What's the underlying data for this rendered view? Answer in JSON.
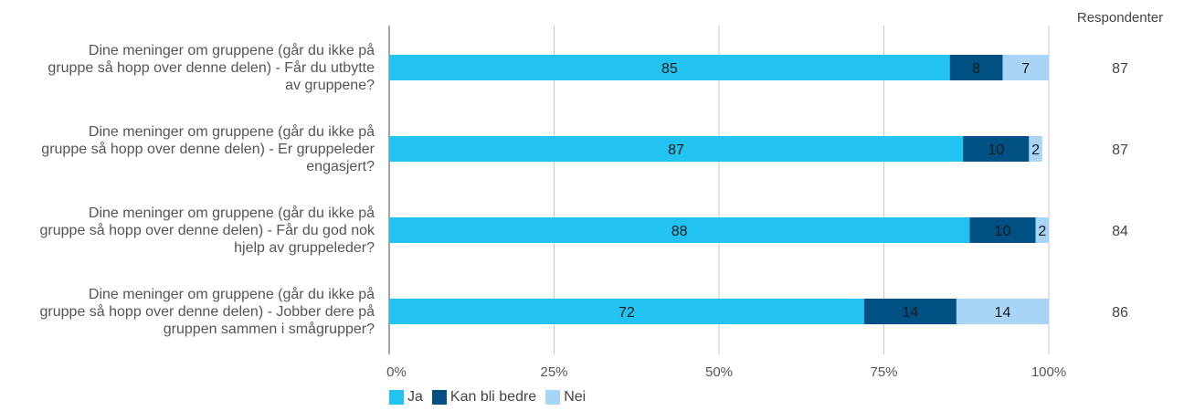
{
  "chart_data": {
    "type": "bar",
    "orientation": "horizontal",
    "stacked": true,
    "percent_stacked": true,
    "categories": [
      [
        "Dine meninger om gruppene (går du ikke på",
        "gruppe så hopp over denne delen) - Får du utbytte",
        "av gruppene?"
      ],
      [
        "Dine meninger om gruppene (går du ikke på",
        "gruppe så hopp over denne delen) - Er gruppeleder",
        "engasjert?"
      ],
      [
        "Dine meninger om gruppene (går du ikke på",
        "gruppe så hopp over denne delen) - Får du god nok",
        "hjelp av gruppeleder?"
      ],
      [
        "Dine meninger om gruppene (går du ikke på",
        "gruppe så hopp over denne delen) - Jobber dere på",
        "gruppen sammen i smågrupper?"
      ]
    ],
    "series": [
      {
        "name": "Ja",
        "color": "#22c3f0",
        "values": [
          85,
          87,
          88,
          72
        ]
      },
      {
        "name": "Kan bli bedre",
        "color": "#005084",
        "values": [
          8,
          10,
          10,
          14
        ]
      },
      {
        "name": "Nei",
        "color": "#a8d4f5",
        "values": [
          7,
          2,
          2,
          14
        ]
      }
    ],
    "xlim": [
      0,
      100
    ],
    "x_ticks": [
      "0%",
      "25%",
      "50%",
      "75%",
      "100%"
    ],
    "grid": true,
    "legend_position": "bottom-left",
    "respondents_header": "Respondenter",
    "respondents": [
      "87",
      "87",
      "84",
      "86"
    ]
  }
}
